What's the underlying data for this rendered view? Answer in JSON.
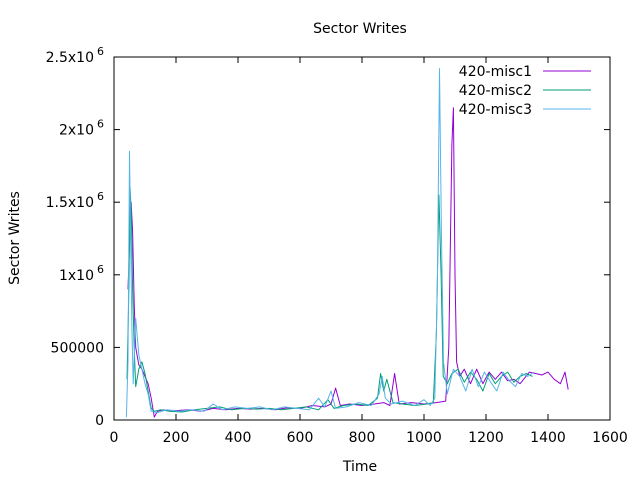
{
  "chart_data": {
    "type": "line",
    "title": "Sector Writes",
    "xlabel": "Time",
    "ylabel": "Sector Writes",
    "xlim": [
      0,
      1600
    ],
    "ylim": [
      0,
      2500000
    ],
    "x_ticks": [
      0,
      200,
      400,
      600,
      800,
      1000,
      1200,
      1400,
      1600
    ],
    "x_tick_labels": [
      "0",
      "200",
      "400",
      "600",
      "800",
      "1000",
      "1200",
      "1400",
      "1600"
    ],
    "y_ticks": [
      0,
      500000,
      1000000,
      1500000,
      2000000,
      2500000
    ],
    "y_tick_labels": [
      {
        "base": "0",
        "exp": ""
      },
      {
        "base": "500000",
        "exp": ""
      },
      {
        "base": "1x10",
        "exp": "6"
      },
      {
        "base": "1.5x10",
        "exp": "6"
      },
      {
        "base": "2x10",
        "exp": "6"
      },
      {
        "base": "2.5x10",
        "exp": "6"
      }
    ],
    "legend_position": "top-right",
    "grid": false,
    "series": [
      {
        "name": "420-misc1",
        "color": "#9400d3",
        "points": [
          [
            45,
            900000
          ],
          [
            50,
            1200000
          ],
          [
            55,
            1500000
          ],
          [
            60,
            1300000
          ],
          [
            65,
            800000
          ],
          [
            70,
            500000
          ],
          [
            80,
            380000
          ],
          [
            90,
            350000
          ],
          [
            100,
            300000
          ],
          [
            110,
            250000
          ],
          [
            120,
            150000
          ],
          [
            130,
            20000
          ],
          [
            140,
            60000
          ],
          [
            160,
            70000
          ],
          [
            180,
            60000
          ],
          [
            200,
            65000
          ],
          [
            240,
            70000
          ],
          [
            280,
            60000
          ],
          [
            320,
            80000
          ],
          [
            360,
            70000
          ],
          [
            400,
            80000
          ],
          [
            440,
            75000
          ],
          [
            480,
            80000
          ],
          [
            520,
            70000
          ],
          [
            560,
            85000
          ],
          [
            600,
            80000
          ],
          [
            640,
            100000
          ],
          [
            680,
            90000
          ],
          [
            700,
            110000
          ],
          [
            715,
            220000
          ],
          [
            730,
            100000
          ],
          [
            760,
            110000
          ],
          [
            800,
            100000
          ],
          [
            840,
            110000
          ],
          [
            870,
            120000
          ],
          [
            890,
            100000
          ],
          [
            905,
            320000
          ],
          [
            920,
            110000
          ],
          [
            960,
            120000
          ],
          [
            1000,
            110000
          ],
          [
            1040,
            120000
          ],
          [
            1070,
            130000
          ],
          [
            1080,
            500000
          ],
          [
            1090,
            1900000
          ],
          [
            1095,
            2150000
          ],
          [
            1100,
            1000000
          ],
          [
            1105,
            400000
          ],
          [
            1115,
            300000
          ],
          [
            1130,
            350000
          ],
          [
            1150,
            250000
          ],
          [
            1170,
            350000
          ],
          [
            1190,
            250000
          ],
          [
            1210,
            330000
          ],
          [
            1230,
            280000
          ],
          [
            1250,
            330000
          ],
          [
            1270,
            270000
          ],
          [
            1290,
            280000
          ],
          [
            1310,
            250000
          ],
          [
            1340,
            330000
          ],
          [
            1360,
            320000
          ],
          [
            1380,
            310000
          ],
          [
            1400,
            330000
          ],
          [
            1420,
            280000
          ],
          [
            1440,
            250000
          ],
          [
            1455,
            330000
          ],
          [
            1465,
            210000
          ]
        ]
      },
      {
        "name": "420-misc2",
        "color": "#009e73",
        "points": [
          [
            42,
            280000
          ],
          [
            48,
            900000
          ],
          [
            52,
            1600000
          ],
          [
            56,
            1400000
          ],
          [
            60,
            900000
          ],
          [
            65,
            500000
          ],
          [
            70,
            230000
          ],
          [
            80,
            350000
          ],
          [
            90,
            400000
          ],
          [
            100,
            320000
          ],
          [
            110,
            200000
          ],
          [
            120,
            80000
          ],
          [
            130,
            60000
          ],
          [
            150,
            70000
          ],
          [
            180,
            60000
          ],
          [
            220,
            55000
          ],
          [
            260,
            70000
          ],
          [
            300,
            80000
          ],
          [
            340,
            90000
          ],
          [
            380,
            70000
          ],
          [
            420,
            80000
          ],
          [
            460,
            75000
          ],
          [
            500,
            80000
          ],
          [
            540,
            70000
          ],
          [
            580,
            80000
          ],
          [
            620,
            90000
          ],
          [
            660,
            70000
          ],
          [
            690,
            140000
          ],
          [
            710,
            80000
          ],
          [
            740,
            100000
          ],
          [
            780,
            110000
          ],
          [
            820,
            100000
          ],
          [
            850,
            150000
          ],
          [
            860,
            320000
          ],
          [
            870,
            200000
          ],
          [
            880,
            280000
          ],
          [
            900,
            120000
          ],
          [
            930,
            110000
          ],
          [
            970,
            100000
          ],
          [
            1010,
            110000
          ],
          [
            1030,
            120000
          ],
          [
            1040,
            600000
          ],
          [
            1048,
            1550000
          ],
          [
            1055,
            1000000
          ],
          [
            1062,
            300000
          ],
          [
            1075,
            250000
          ],
          [
            1090,
            320000
          ],
          [
            1110,
            350000
          ],
          [
            1130,
            260000
          ],
          [
            1150,
            330000
          ],
          [
            1170,
            280000
          ],
          [
            1190,
            200000
          ],
          [
            1210,
            320000
          ],
          [
            1230,
            250000
          ],
          [
            1250,
            300000
          ],
          [
            1270,
            330000
          ],
          [
            1290,
            260000
          ],
          [
            1310,
            300000
          ],
          [
            1330,
            320000
          ],
          [
            1350,
            300000
          ]
        ]
      },
      {
        "name": "420-misc3",
        "color": "#56b4e9",
        "points": [
          [
            40,
            20000
          ],
          [
            45,
            400000
          ],
          [
            50,
            1850000
          ],
          [
            54,
            1200000
          ],
          [
            58,
            600000
          ],
          [
            62,
            250000
          ],
          [
            70,
            700000
          ],
          [
            80,
            450000
          ],
          [
            90,
            350000
          ],
          [
            100,
            250000
          ],
          [
            110,
            180000
          ],
          [
            120,
            60000
          ],
          [
            140,
            50000
          ],
          [
            170,
            70000
          ],
          [
            210,
            60000
          ],
          [
            250,
            70000
          ],
          [
            290,
            60000
          ],
          [
            320,
            110000
          ],
          [
            350,
            70000
          ],
          [
            390,
            90000
          ],
          [
            430,
            80000
          ],
          [
            470,
            90000
          ],
          [
            510,
            70000
          ],
          [
            550,
            90000
          ],
          [
            590,
            80000
          ],
          [
            630,
            70000
          ],
          [
            660,
            150000
          ],
          [
            680,
            90000
          ],
          [
            700,
            200000
          ],
          [
            715,
            80000
          ],
          [
            750,
            90000
          ],
          [
            790,
            120000
          ],
          [
            830,
            100000
          ],
          [
            855,
            180000
          ],
          [
            865,
            300000
          ],
          [
            875,
            150000
          ],
          [
            895,
            110000
          ],
          [
            930,
            130000
          ],
          [
            970,
            100000
          ],
          [
            1000,
            140000
          ],
          [
            1020,
            100000
          ],
          [
            1035,
            150000
          ],
          [
            1043,
            900000
          ],
          [
            1050,
            2420000
          ],
          [
            1056,
            1300000
          ],
          [
            1063,
            400000
          ],
          [
            1075,
            180000
          ],
          [
            1095,
            350000
          ],
          [
            1115,
            300000
          ],
          [
            1135,
            200000
          ],
          [
            1155,
            350000
          ],
          [
            1175,
            230000
          ],
          [
            1195,
            330000
          ],
          [
            1215,
            260000
          ],
          [
            1235,
            200000
          ],
          [
            1255,
            330000
          ],
          [
            1275,
            270000
          ],
          [
            1295,
            230000
          ],
          [
            1315,
            320000
          ],
          [
            1335,
            300000
          ],
          [
            1355,
            330000
          ]
        ]
      }
    ]
  }
}
